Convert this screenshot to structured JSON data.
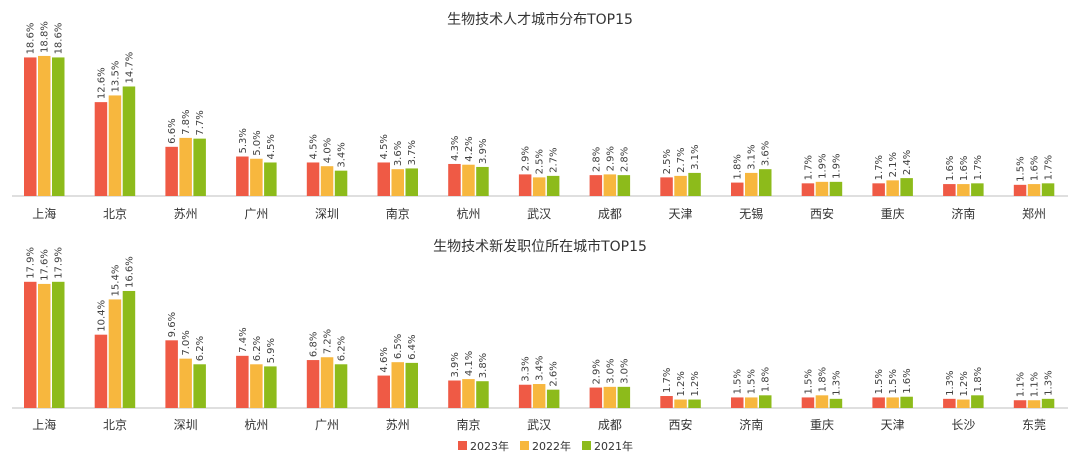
{
  "colors": {
    "2023年": "#EF5A45",
    "2022年": "#F7B73E",
    "2021年": "#8DBB1B",
    "axis": "#BFBFBF"
  },
  "legend": [
    "2023年",
    "2022年",
    "2021年"
  ],
  "chart_data": [
    {
      "type": "bar",
      "title": "生物技术人才城市分布TOP15",
      "categories": [
        "上海",
        "北京",
        "苏州",
        "广州",
        "深圳",
        "南京",
        "杭州",
        "武汉",
        "成都",
        "天津",
        "无锡",
        "西安",
        "重庆",
        "济南",
        "郑州"
      ],
      "series": [
        {
          "name": "2023年",
          "values": [
            18.6,
            12.6,
            6.6,
            5.3,
            4.5,
            4.5,
            4.3,
            2.9,
            2.8,
            2.5,
            1.8,
            1.7,
            1.7,
            1.6,
            1.5
          ]
        },
        {
          "name": "2022年",
          "values": [
            18.8,
            13.5,
            7.8,
            5.0,
            4.0,
            3.6,
            4.2,
            2.5,
            2.9,
            2.7,
            3.1,
            1.9,
            2.1,
            1.6,
            1.6
          ]
        },
        {
          "name": "2021年",
          "values": [
            18.6,
            14.7,
            7.7,
            4.5,
            3.4,
            3.7,
            3.9,
            2.7,
            2.8,
            3.1,
            3.6,
            1.9,
            2.4,
            1.7,
            1.7
          ]
        }
      ],
      "value_suffix": "%",
      "ylim": [
        0,
        20
      ]
    },
    {
      "type": "bar",
      "title": "生物技术新发职位所在城市TOP15",
      "categories": [
        "上海",
        "北京",
        "深圳",
        "杭州",
        "广州",
        "苏州",
        "南京",
        "武汉",
        "成都",
        "西安",
        "济南",
        "重庆",
        "天津",
        "长沙",
        "东莞"
      ],
      "series": [
        {
          "name": "2023年",
          "values": [
            17.9,
            10.4,
            9.6,
            7.4,
            6.8,
            4.6,
            3.9,
            3.3,
            2.9,
            1.7,
            1.5,
            1.5,
            1.5,
            1.3,
            1.1
          ]
        },
        {
          "name": "2022年",
          "values": [
            17.6,
            15.4,
            7.0,
            6.2,
            7.2,
            6.5,
            4.1,
            3.4,
            3.0,
            1.2,
            1.5,
            1.8,
            1.5,
            1.2,
            1.1
          ]
        },
        {
          "name": "2021年",
          "values": [
            17.9,
            16.6,
            6.2,
            5.9,
            6.2,
            6.4,
            3.8,
            2.6,
            3.0,
            1.2,
            1.8,
            1.3,
            1.6,
            1.8,
            1.3
          ]
        }
      ],
      "value_suffix": "%",
      "ylim": [
        0,
        20
      ]
    }
  ]
}
